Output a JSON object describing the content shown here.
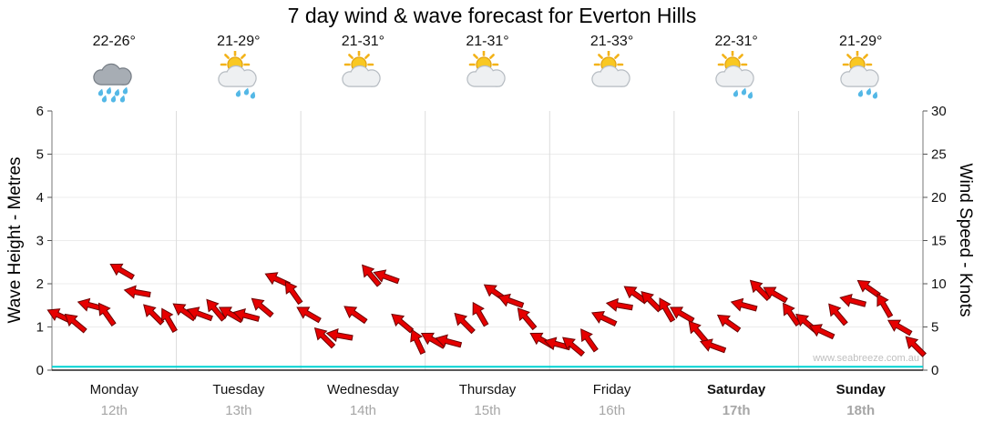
{
  "chart_data": {
    "type": "line",
    "title": "7 day wind & wave forecast for Everton Hills",
    "watermark": "www.seabreeze.com.au",
    "left_axis": {
      "label": "Wave Height - Metres",
      "min": 0,
      "max": 6,
      "ticks": [
        0,
        1,
        2,
        3,
        4,
        5,
        6
      ]
    },
    "right_axis": {
      "label": "Wind Speed - Knots",
      "min": 0,
      "max": 30,
      "ticks": [
        0,
        5,
        10,
        15,
        20,
        25,
        30
      ]
    },
    "days": [
      {
        "name": "Monday",
        "date": "12th",
        "temp": "22-26°",
        "icon": "rain",
        "bold": false
      },
      {
        "name": "Tuesday",
        "date": "13th",
        "temp": "21-29°",
        "icon": "sun-cloud-rain",
        "bold": false
      },
      {
        "name": "Wednesday",
        "date": "14th",
        "temp": "21-31°",
        "icon": "sun-cloud",
        "bold": false
      },
      {
        "name": "Thursday",
        "date": "15th",
        "temp": "21-31°",
        "icon": "sun-cloud",
        "bold": false
      },
      {
        "name": "Friday",
        "date": "16th",
        "temp": "21-33°",
        "icon": "sun-cloud",
        "bold": false
      },
      {
        "name": "Saturday",
        "date": "17th",
        "temp": "22-31°",
        "icon": "sun-cloud-rain",
        "bold": true
      },
      {
        "name": "Sunday",
        "date": "18th",
        "temp": "21-29°",
        "icon": "sun-cloud-rain",
        "bold": true
      }
    ],
    "wind_series": {
      "name": "Wind Speed & Direction",
      "color": "#e60000",
      "knots": [
        6.3,
        5.5,
        7.5,
        6.5,
        11.5,
        9,
        6.5,
        5.8,
        6.8,
        6.5,
        7,
        6.5,
        6.3,
        7.3,
        10.5,
        9,
        6.5,
        3.8,
        4,
        6.5,
        11,
        10.8,
        5.5,
        3.3,
        3.5,
        3.3,
        5.5,
        6.5,
        9,
        8,
        6,
        3.5,
        3,
        2.8,
        3.5,
        6,
        7.5,
        8.8,
        8,
        7,
        6.5,
        4.5,
        2.8,
        5.5,
        7.5,
        9.3,
        8.8,
        6.5,
        5.5,
        4.5,
        6.5,
        8,
        9.5,
        7.5,
        5,
        2.8
      ],
      "dir_deg": [
        205,
        220,
        195,
        235,
        210,
        190,
        225,
        240,
        215,
        200,
        230,
        210,
        195,
        220,
        205,
        235,
        210,
        225,
        190,
        215,
        230,
        200,
        220,
        245,
        210,
        195,
        225,
        240,
        215,
        200,
        230,
        210,
        195,
        220,
        235,
        205,
        190,
        215,
        225,
        240,
        210,
        230,
        200,
        215,
        195,
        225,
        210,
        235,
        220,
        205,
        230,
        195,
        215,
        240,
        210,
        225
      ]
    },
    "wave_series": {
      "name": "Wave Height",
      "color": "#00d2d2",
      "metres": [
        0.08,
        0.08,
        0.08,
        0.08,
        0.08,
        0.08,
        0.08,
        0.08,
        0.08,
        0.08,
        0.08,
        0.08,
        0.08,
        0.08,
        0.08,
        0.08,
        0.08,
        0.08,
        0.08,
        0.08,
        0.08,
        0.08,
        0.08,
        0.08,
        0.08,
        0.08,
        0.08,
        0.08,
        0.08,
        0.08,
        0.08,
        0.08,
        0.08,
        0.08,
        0.08,
        0.08,
        0.08,
        0.08,
        0.08,
        0.08,
        0.08,
        0.08,
        0.08,
        0.08,
        0.08,
        0.08,
        0.08,
        0.08,
        0.08,
        0.08,
        0.08,
        0.08,
        0.08,
        0.08,
        0.08,
        0.08
      ]
    }
  }
}
